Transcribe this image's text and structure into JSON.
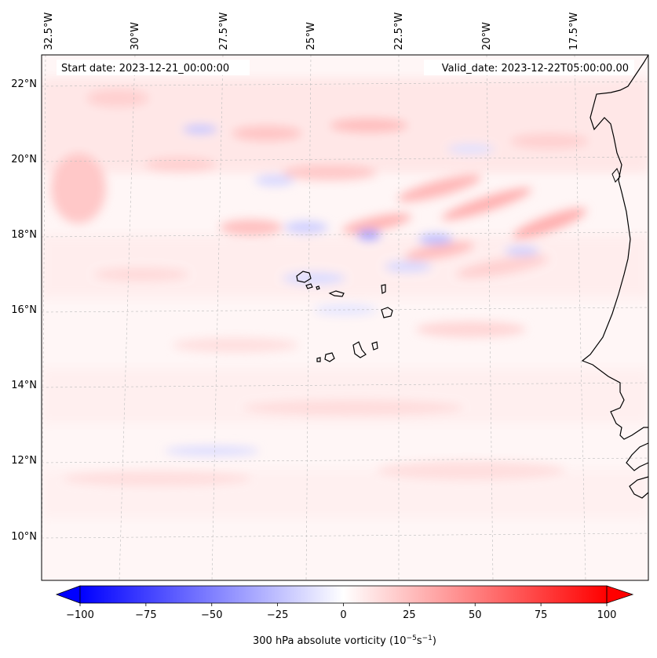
{
  "map": {
    "start_date": "Start date: 2023-12-21_00:00:00",
    "valid_date": "Valid_date: 2023-12-22T05:00:00.00",
    "lon_labels": [
      "32.5°W",
      "30°W",
      "27.5°W",
      "25°W",
      "22.5°W",
      "20°W",
      "17.5°W"
    ],
    "lat_labels": [
      "22°N",
      "20°N",
      "18°N",
      "16°N",
      "14°N",
      "12°N",
      "10°N"
    ],
    "features": [
      "Cape Verde islands",
      "West African coastline"
    ]
  },
  "colorbar": {
    "min": -100,
    "max": 100,
    "ticks": [
      "−100",
      "−75",
      "−50",
      "−25",
      "0",
      "25",
      "50",
      "75",
      "100"
    ],
    "label_main": "300 hPa absolute vorticity (10",
    "label_exp1": "−5",
    "label_mid": "s",
    "label_exp2": "−1",
    "label_end": ")",
    "colors": {
      "negative": "#0000ff",
      "zero": "#ffffff",
      "positive": "#ff0000"
    }
  }
}
